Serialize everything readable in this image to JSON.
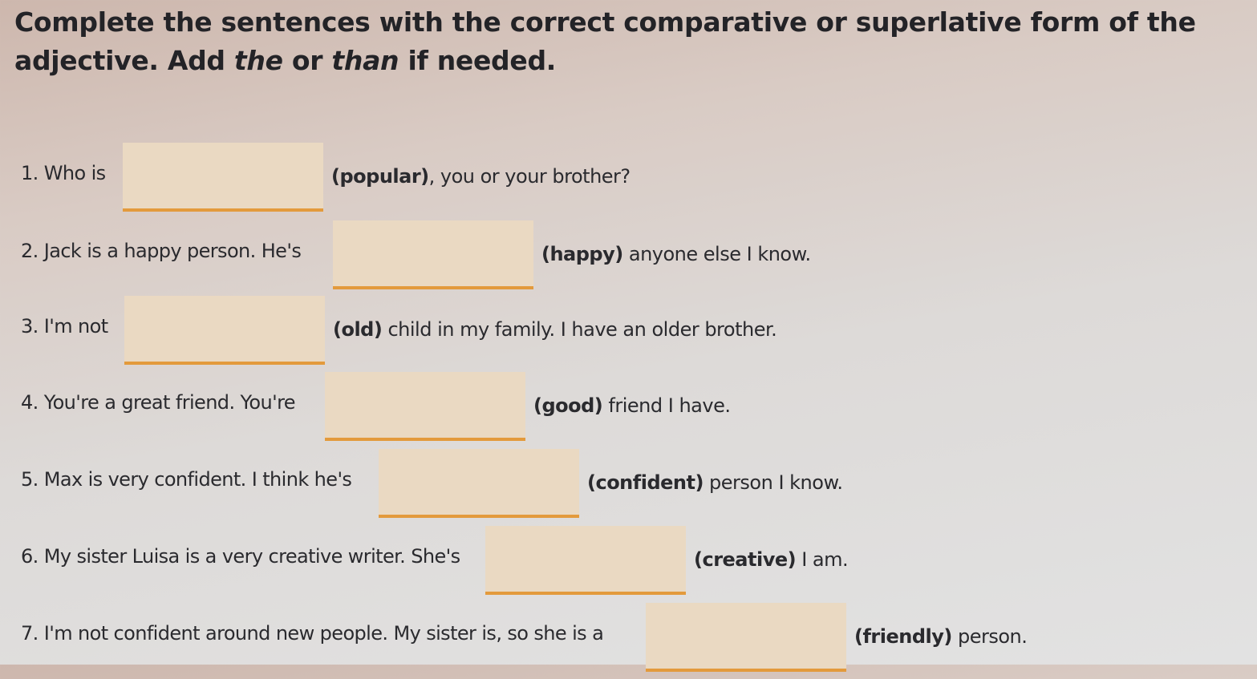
{
  "instructions": {
    "part1": "Complete the sentences with the correct comparative or superlative form of the adjective. Add ",
    "the": "the",
    "or": " or ",
    "than": "than",
    "part2": " if needed."
  },
  "items": [
    {
      "before": "1.  Who is",
      "adjective": "(popular)",
      "after": ", you or your brother?",
      "answer": ""
    },
    {
      "before": "2.  Jack is a happy person. He's",
      "adjective": "(happy)",
      "after": " anyone else I know.",
      "answer": ""
    },
    {
      "before": "3.  I'm not",
      "adjective": "(old)",
      "after": " child in my family. I have an older brother.",
      "answer": ""
    },
    {
      "before": "4.  You're a great friend. You're",
      "adjective": "(good)",
      "after": " friend I have.",
      "answer": ""
    },
    {
      "before": "5.  Max is very confident. I think he's",
      "adjective": "(confident)",
      "after": " person I know.",
      "answer": ""
    },
    {
      "before": "6.  My sister Luisa is a very creative writer. She's",
      "adjective": "(creative)",
      "after": " I am.",
      "answer": ""
    },
    {
      "before": "7.  I'm not confident around new people. My sister is, so she is a",
      "adjective": "(friendly)",
      "after": " person.",
      "answer": ""
    }
  ],
  "colors": {
    "answer_box": "#ead9c2",
    "answer_underline": "#e39a3c"
  }
}
